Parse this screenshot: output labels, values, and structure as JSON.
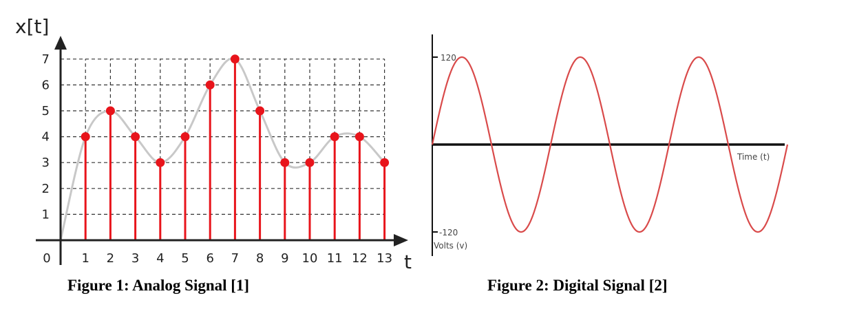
{
  "chart_data": [
    {
      "type": "stem",
      "ylabel": "x[t]",
      "xlabel": "t",
      "x": [
        1,
        2,
        3,
        4,
        5,
        6,
        7,
        8,
        9,
        10,
        11,
        12,
        13
      ],
      "values": [
        4,
        5,
        4,
        3,
        4,
        6,
        7,
        5,
        3,
        3,
        4,
        4,
        3
      ],
      "x_ticks": [
        "0",
        "1",
        "2",
        "3",
        "4",
        "5",
        "6",
        "7",
        "8",
        "9",
        "10",
        "11",
        "12",
        "13"
      ],
      "y_ticks": [
        "1",
        "2",
        "3",
        "4",
        "5",
        "6",
        "7"
      ],
      "xlim": [
        0,
        13
      ],
      "ylim": [
        0,
        7
      ],
      "grid": true,
      "stem_color": "#e8141b",
      "curve_color": "#c8c8c8",
      "caption": "Figure 1: Analog Signal [1]"
    },
    {
      "type": "line",
      "function": "sine",
      "amplitude": 120,
      "cycles": 3,
      "xlabel": "Time (t)",
      "ylabel": "Volts (v)",
      "y_ticks": [
        "120",
        "-120"
      ],
      "line_color": "#d94a4a",
      "caption": "Figure 2: Digital Signal [2]"
    }
  ]
}
